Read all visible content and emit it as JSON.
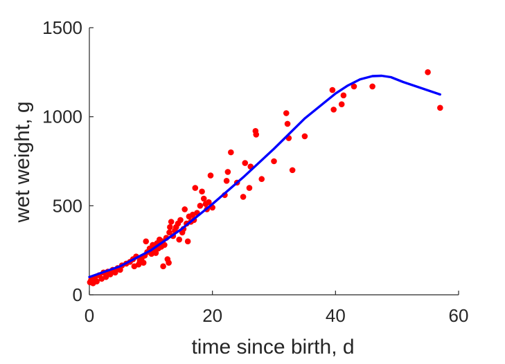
{
  "chart_data": {
    "type": "scatter",
    "title": "",
    "xlabel": "time since birth, d",
    "ylabel": "wet weight, g",
    "xlim": [
      0,
      60
    ],
    "ylim": [
      0,
      1500
    ],
    "xticks": [
      0,
      20,
      40,
      60
    ],
    "yticks": [
      0,
      500,
      1000,
      1500
    ],
    "grid": false,
    "series": [
      {
        "kind": "points",
        "color": "#ff0000",
        "x": [
          0.1,
          0.3,
          0.6,
          0.9,
          1.2,
          1.6,
          2.0,
          2.3,
          2.7,
          3.0,
          3.4,
          3.8,
          4.2,
          4.6,
          5.0,
          5.3,
          6.0,
          6.6,
          7.1,
          7.3,
          7.6,
          8.0,
          8.2,
          8.5,
          8.8,
          9.0,
          9.2,
          9.4,
          9.8,
          10.1,
          10.3,
          10.5,
          10.8,
          11.0,
          11.2,
          11.4,
          11.7,
          11.9,
          12.0,
          12.2,
          12.5,
          12.7,
          12.9,
          13.0,
          13.1,
          13.3,
          13.6,
          13.9,
          14.1,
          14.4,
          14.6,
          14.8,
          15.1,
          15.3,
          15.5,
          15.8,
          16.0,
          16.2,
          16.5,
          16.8,
          17.0,
          17.2,
          17.5,
          18.0,
          18.3,
          18.6,
          18.9,
          19.1,
          19.4,
          19.7,
          20.0,
          22.0,
          22.3,
          22.5,
          23.0,
          24.0,
          25.0,
          25.3,
          26.0,
          26.2,
          27.0,
          27.1,
          28.0,
          30.0,
          32.0,
          32.2,
          32.4,
          33.0,
          35.0,
          39.5,
          39.7,
          41.0,
          41.3,
          43.0,
          46.0,
          55.0,
          57.0
        ],
        "y": [
          70,
          85,
          65,
          95,
          75,
          110,
          90,
          125,
          100,
          130,
          115,
          140,
          125,
          150,
          140,
          165,
          175,
          185,
          200,
          160,
          215,
          170,
          190,
          205,
          180,
          220,
          300,
          240,
          260,
          230,
          280,
          250,
          235,
          290,
          260,
          310,
          270,
          300,
          160,
          280,
          320,
          200,
          180,
          350,
          380,
          410,
          330,
          360,
          380,
          400,
          310,
          420,
          350,
          370,
          480,
          400,
          300,
          440,
          410,
          450,
          420,
          600,
          460,
          500,
          580,
          540,
          510,
          480,
          520,
          670,
          490,
          560,
          640,
          690,
          800,
          630,
          550,
          740,
          600,
          720,
          920,
          900,
          650,
          750,
          1020,
          960,
          880,
          700,
          890,
          1150,
          1040,
          1070,
          1120,
          1170,
          1170,
          1250,
          1050
        ]
      },
      {
        "kind": "line",
        "color": "#0000ff",
        "x": [
          0,
          5,
          10,
          15,
          20,
          25,
          30,
          35,
          40,
          42,
          44,
          46,
          47.5,
          49,
          51,
          54,
          57
        ],
        "y": [
          100,
          160,
          250,
          370,
          510,
          660,
          820,
          990,
          1130,
          1175,
          1210,
          1228,
          1230,
          1222,
          1195,
          1160,
          1125
        ]
      }
    ]
  }
}
